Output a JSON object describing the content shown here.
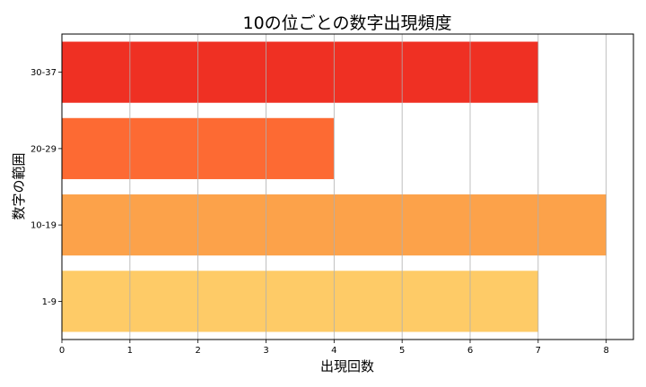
{
  "chart_data": {
    "type": "bar",
    "orientation": "horizontal",
    "title": "10の位ごとの数字出現頻度",
    "xlabel": "出現回数",
    "ylabel": "数字の範囲",
    "categories": [
      "1-9",
      "10-19",
      "20-29",
      "30-37"
    ],
    "values": [
      7,
      8,
      4,
      7
    ],
    "colors": [
      "#fecb67",
      "#fca24a",
      "#fd6a33",
      "#ef3023"
    ],
    "xlim": [
      0,
      8.4
    ],
    "xticks": [
      0,
      1,
      2,
      3,
      4,
      5,
      6,
      7,
      8
    ],
    "grid": "x"
  }
}
